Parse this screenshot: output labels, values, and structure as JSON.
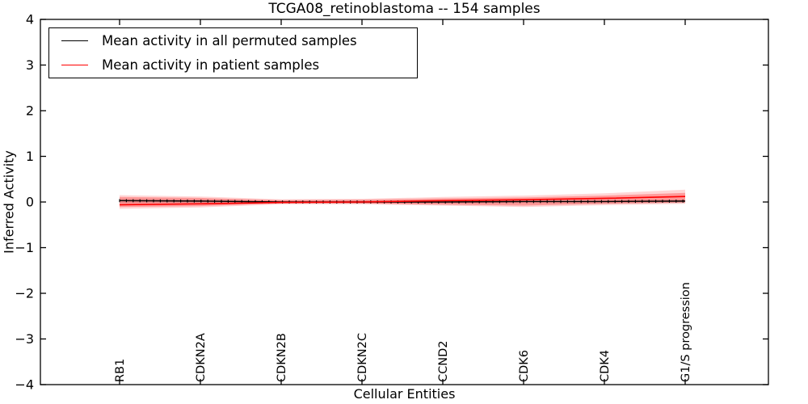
{
  "title": "TCGA08_retinoblastoma -- 154 samples",
  "legend": {
    "position": "upper left",
    "items": [
      {
        "label": "Mean activity in all permuted samples",
        "color": "#000000"
      },
      {
        "label": "Mean activity in patient samples",
        "color": "#ff0000"
      }
    ]
  },
  "chart_data": {
    "type": "line",
    "title": "TCGA08_retinoblastoma -- 154 samples",
    "xlabel": "Cellular Entities",
    "ylabel": "Inferred Activity",
    "ylim": [
      -4,
      4
    ],
    "ytick_labels": [
      "4",
      "3",
      "2",
      "1",
      "0",
      "−1",
      "−2",
      "−3",
      "−4"
    ],
    "grid": false,
    "legend_position": "upper left",
    "categories": [
      "RB1",
      "CDKN2A",
      "CDKN2B",
      "CDKN2C",
      "CCND2",
      "CDK6",
      "CDK4",
      "G1/S progression"
    ],
    "series": [
      {
        "id": "permuted",
        "name": "Mean activity in all permuted samples",
        "color": "#000000",
        "style": "solid-with-tick-markers",
        "values": [
          0.03,
          0.02,
          0.0,
          0.0,
          0.0,
          0.01,
          0.01,
          0.02
        ]
      },
      {
        "id": "patient",
        "name": "Mean activity in patient samples",
        "color": "#ff0000",
        "style": "solid",
        "values": [
          -0.06,
          -0.04,
          -0.01,
          0.0,
          0.03,
          0.05,
          0.08,
          0.12
        ]
      }
    ],
    "bands": [
      {
        "name": "permuted-spread-band",
        "color": "#000000",
        "alpha": 0.13,
        "upper": [
          0.07,
          0.06,
          0.03,
          0.03,
          0.03,
          0.04,
          0.05,
          0.06
        ],
        "lower": [
          -0.02,
          -0.02,
          -0.03,
          -0.03,
          -0.03,
          -0.02,
          -0.03,
          -0.02
        ]
      },
      {
        "name": "patient-spread-band-outer",
        "color": "#ff0000",
        "alpha": 0.16,
        "upper": [
          0.15,
          0.12,
          0.06,
          0.07,
          0.11,
          0.14,
          0.19,
          0.27
        ],
        "lower": [
          -0.15,
          -0.12,
          -0.05,
          -0.05,
          -0.08,
          -0.11,
          -0.07,
          -0.04
        ]
      },
      {
        "name": "patient-spread-band-inner",
        "color": "#ff0000",
        "alpha": 0.28,
        "upper": [
          0.11,
          0.09,
          0.04,
          0.05,
          0.08,
          0.1,
          0.14,
          0.2
        ],
        "lower": [
          -0.11,
          -0.09,
          -0.03,
          -0.03,
          -0.06,
          -0.08,
          -0.04,
          -0.01
        ]
      }
    ]
  }
}
